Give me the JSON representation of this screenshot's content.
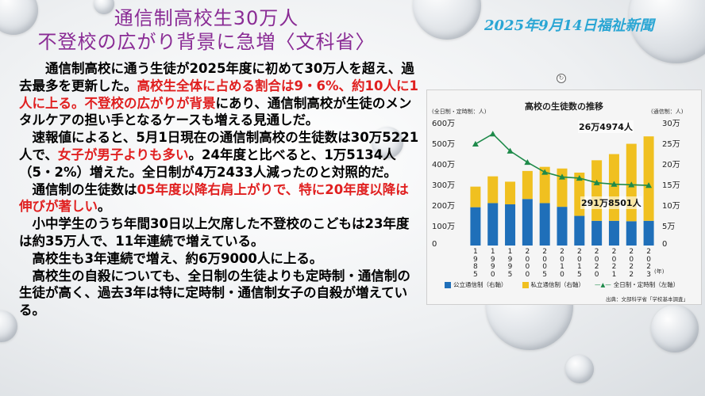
{
  "header": {
    "title_line1": "通信制高校生30万人",
    "title_line2": "不登校の広がり背景に急増〈文科省〉",
    "dateline": "2025年9月14日福祉新聞"
  },
  "article": {
    "p1_a": "通信制高校に通う生徒が2025年度に初めて30万人を超え、過去最多を更新した。",
    "p1_b": "高校生全体に占める割合は9・6%、約10人に1人に上る。不登校の広がりが背景",
    "p1_c": "にあり、通信制高校が生徒のメンタルケアの担い手となるケースも増える見通しだ。",
    "p2_a": "速報値によると、5月1日現在の通信制高校の生徒数は30万5221人で、",
    "p2_b": "女子が男子よりも多い",
    "p2_c": "。24年度と比べると、1万5134人（5・2%）増えた。全日制が4万2433人減ったのと対照的だ。",
    "p3_a": "通信制の生徒数は",
    "p3_b": "05年度以降右肩上がりで、特に20年度以降は伸びが著しい",
    "p3_c": "。",
    "p4": "小中学生のうち年間30日以上欠席した不登校のこどもは23年度は約35万人で、11年連続で増えている。",
    "p5": "高校生も3年連続で増え、約6万9000人に上る。",
    "p6": "高校生の自殺についても、全日制の生徒よりも定時制・通信制の生徒が高く、過去3年は特に定時制・通信制女子の自殺が増えている。"
  },
  "chart_data": {
    "type": "bar",
    "title": "高校の生徒数の推移",
    "left_axis_note": "(全日制・定時制：人)",
    "right_axis_note": "(通信制：人)",
    "x_unit": "(年)",
    "categories": [
      "1985",
      "1990",
      "1995",
      "2000",
      "2005",
      "2010",
      "2015",
      "2020",
      "2021",
      "2022",
      "2023"
    ],
    "stacked": true,
    "series": [
      {
        "name": "公立通信制（右軸）",
        "axis": "right",
        "color": "#1f6fb9",
        "values": [
          9.3,
          10.3,
          10.0,
          11.3,
          10.3,
          9.4,
          7.2,
          6.0,
          6.0,
          5.9,
          6.0
        ]
      },
      {
        "name": "私立通信制（右軸）",
        "axis": "right",
        "color": "#f0c020",
        "values": [
          5.0,
          6.5,
          5.5,
          6.8,
          8.8,
          9.3,
          10.5,
          14.7,
          16.2,
          18.8,
          20.5
        ]
      },
      {
        "name": "全日制・定時制（左軸）",
        "axis": "left",
        "type": "line",
        "color": "#1e8a4a",
        "values": [
          493,
          542,
          459,
          404,
          356,
          333,
          327,
          305,
          298,
          295,
          292
        ]
      }
    ],
    "left_axis": {
      "min": 0,
      "max": 600,
      "step": 100,
      "unit_suffix": "万"
    },
    "right_axis": {
      "min": 0,
      "max": 30,
      "step": 5,
      "unit_suffix": "万"
    },
    "annotations": [
      {
        "text": "26万4974人",
        "target": "通信制 2023"
      },
      {
        "text": "291万8501人",
        "target": "全日制・定時制 2023"
      }
    ],
    "source": "出典：文部科学省「学校基本調査」"
  }
}
